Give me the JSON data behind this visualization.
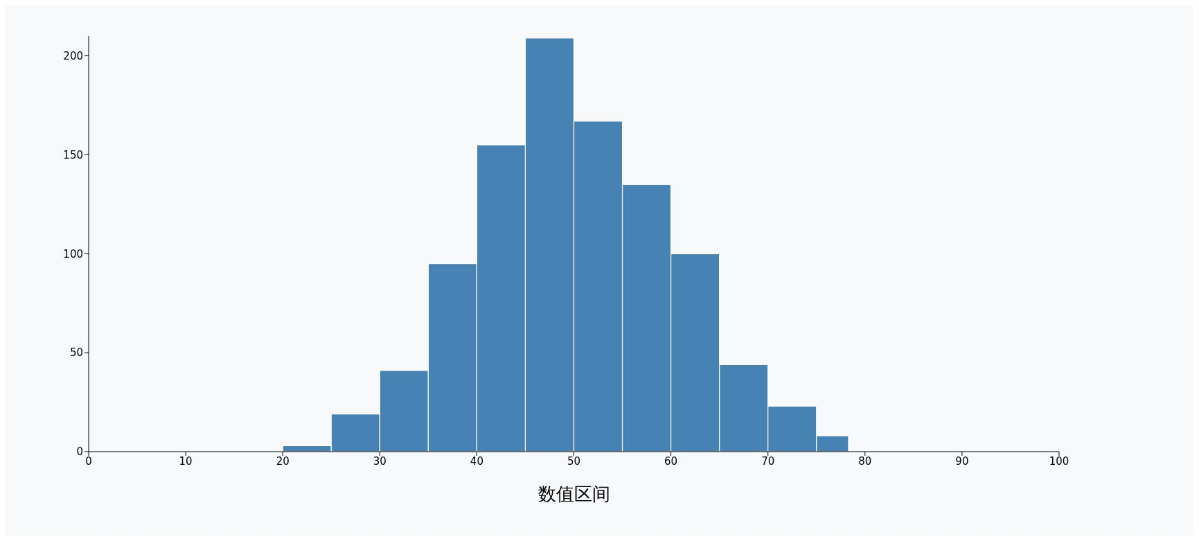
{
  "chart_data": {
    "type": "histogram",
    "xlabel": "数值区间",
    "bins": [
      20,
      25,
      30,
      35,
      40,
      45,
      50,
      55,
      60,
      65,
      70,
      75,
      78.3
    ],
    "values": [
      3,
      19,
      41,
      95,
      155,
      209,
      167,
      135,
      100,
      44,
      23,
      8
    ],
    "color": "#4682b4",
    "xlim": [
      0,
      100
    ],
    "xticks": [
      0,
      10,
      20,
      30,
      40,
      50,
      60,
      70,
      80,
      90,
      100
    ],
    "ylim": [
      0,
      210
    ],
    "yticks": [
      0,
      50,
      100,
      150,
      200
    ]
  }
}
